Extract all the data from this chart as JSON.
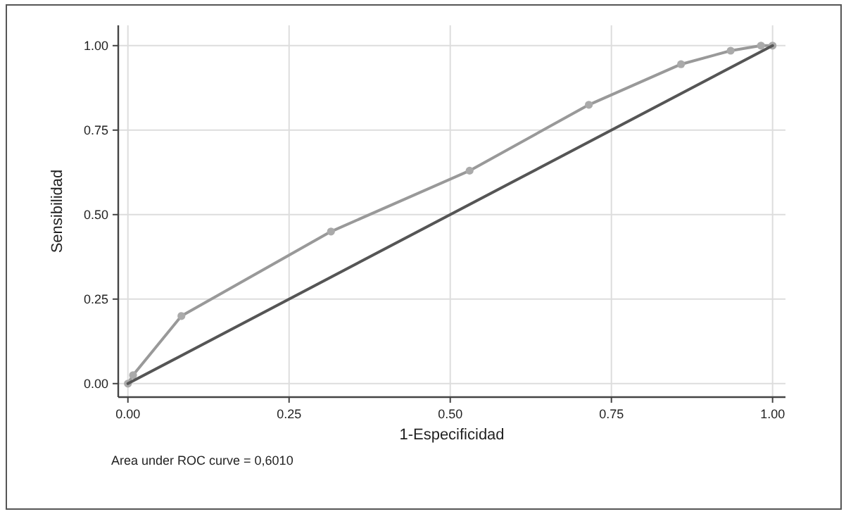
{
  "chart_data": {
    "type": "line",
    "xlabel": "1-Especificidad",
    "ylabel": "Sensibilidad",
    "annotations": [
      "Area under ROC curve = 0,6010"
    ],
    "xlim": [
      -0.015,
      1.02
    ],
    "ylim": [
      -0.04,
      1.06
    ],
    "xticks": [
      {
        "value": 0,
        "label": "0.00"
      },
      {
        "value": 0.25,
        "label": "0.25"
      },
      {
        "value": 0.5,
        "label": "0.50"
      },
      {
        "value": 0.75,
        "label": "0.75"
      },
      {
        "value": 1,
        "label": "1.00"
      }
    ],
    "yticks": [
      {
        "value": 0,
        "label": "0.00"
      },
      {
        "value": 0.25,
        "label": "0.25"
      },
      {
        "value": 0.5,
        "label": "0.50"
      },
      {
        "value": 0.75,
        "label": "0.75"
      },
      {
        "value": 1,
        "label": "1.00"
      }
    ],
    "grid": true,
    "series": [
      {
        "color": "#999999",
        "marker": "circle",
        "x": [
          0,
          0.008,
          0.083,
          0.315,
          0.53,
          0.715,
          0.858,
          0.935,
          0.982,
          1
        ],
        "values": [
          0,
          0.025,
          0.2,
          0.45,
          0.63,
          0.825,
          0.945,
          0.985,
          1.0,
          1.0
        ]
      },
      {
        "color": "#555555",
        "marker": "none",
        "x": [
          0,
          1
        ],
        "values": [
          0,
          1
        ]
      }
    ]
  }
}
